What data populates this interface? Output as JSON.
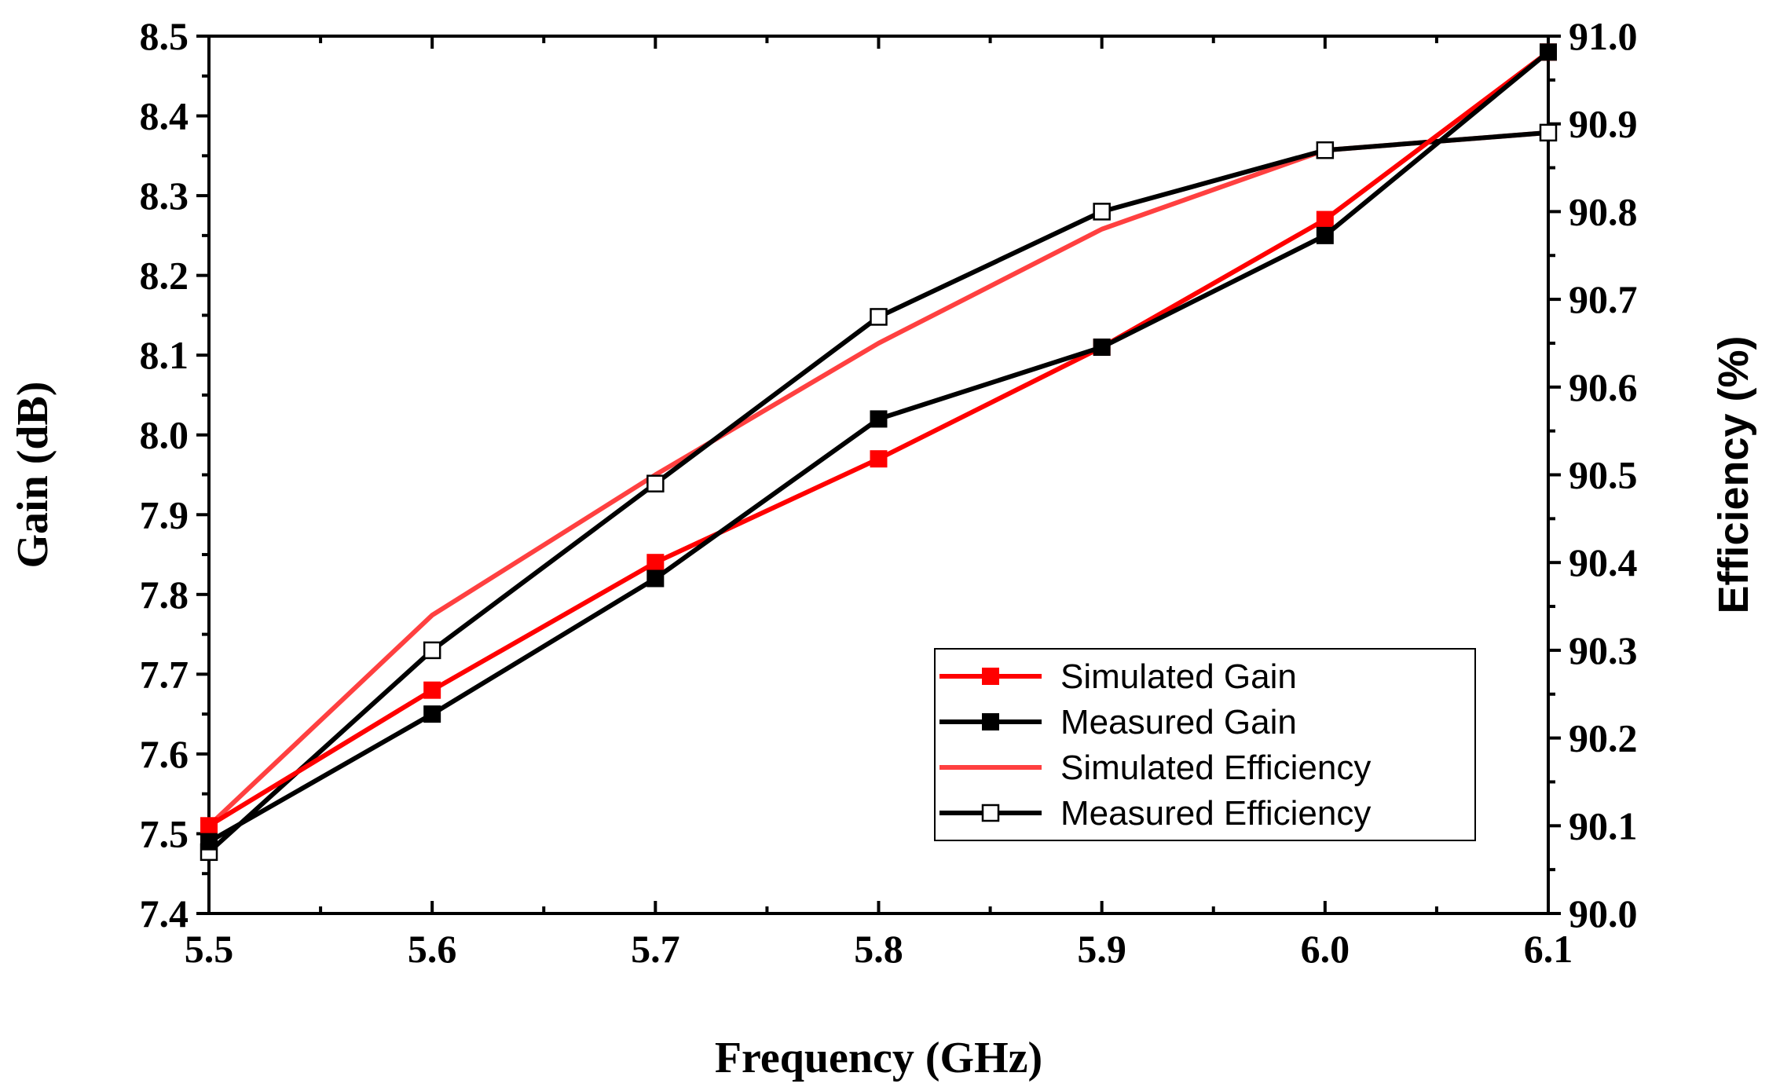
{
  "chart_data": {
    "type": "line",
    "title": "",
    "xlabel": "Frequency (GHz)",
    "ylabel_left": "Gain (dB)",
    "ylabel_right": "Efficiency (%)",
    "x": [
      5.5,
      5.6,
      5.7,
      5.8,
      5.9,
      6.0,
      6.1
    ],
    "xlim": [
      5.5,
      6.1
    ],
    "ylim_left": [
      7.4,
      8.5
    ],
    "ylim_right": [
      90.0,
      91.0
    ],
    "x_ticks": [
      "5.5",
      "5.6",
      "5.7",
      "5.8",
      "5.9",
      "6.0",
      "6.1"
    ],
    "y_left_ticks": [
      "7.4",
      "7.5",
      "7.6",
      "7.7",
      "7.8",
      "7.9",
      "8.0",
      "8.1",
      "8.2",
      "8.3",
      "8.4",
      "8.5"
    ],
    "y_right_ticks": [
      "90.0",
      "90.1",
      "90.2",
      "90.3",
      "90.4",
      "90.5",
      "90.6",
      "90.7",
      "90.8",
      "90.9",
      "91.0"
    ],
    "grid": false,
    "legend_position": "bottom-right",
    "series": [
      {
        "name": "Simulated Gain",
        "axis": "left",
        "color": "#ff0000",
        "marker": "filled-square",
        "values": [
          7.51,
          7.68,
          7.84,
          7.97,
          8.11,
          8.27,
          8.48
        ]
      },
      {
        "name": "Measured Gain",
        "axis": "left",
        "color": "#000000",
        "marker": "filled-square",
        "values": [
          7.49,
          7.65,
          7.82,
          8.02,
          8.11,
          8.25,
          8.48
        ]
      },
      {
        "name": "Simulated Efficiency",
        "axis": "right",
        "color": "#ff4040",
        "marker": "none",
        "values": [
          90.1,
          90.34,
          90.5,
          90.65,
          90.78,
          90.87,
          90.89
        ]
      },
      {
        "name": "Measured Efficiency",
        "axis": "right",
        "color": "#000000",
        "marker": "hollow-square",
        "values": [
          90.07,
          90.3,
          90.49,
          90.68,
          90.8,
          90.87,
          90.89
        ]
      }
    ]
  }
}
